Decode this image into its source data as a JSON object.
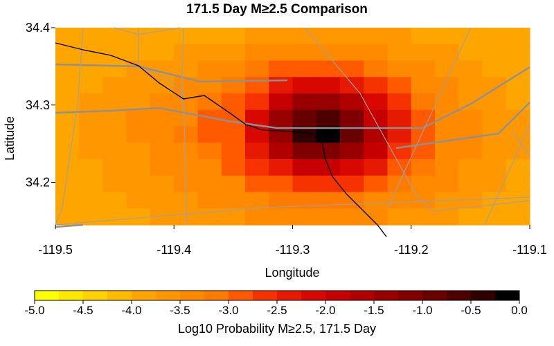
{
  "chart_data": {
    "type": "heatmap",
    "title": "171.5 Day M≥2.5 Comparison",
    "xlabel": "Longitude",
    "ylabel": "Latitude",
    "xlim": [
      -119.5,
      -119.1
    ],
    "ylim": [
      34.145,
      34.4
    ],
    "x_ticks": [
      -119.5,
      -119.4,
      -119.3,
      -119.2,
      -119.1
    ],
    "x_tick_labels": [
      "-119.5",
      "-119.4",
      "-119.3",
      "-119.2",
      "-119.1"
    ],
    "y_ticks": [
      34.2,
      34.3,
      34.4
    ],
    "y_tick_labels": [
      "34.2",
      "34.3",
      "34.4"
    ],
    "grid": {
      "cols": 20,
      "rows": 12,
      "cell_deg": 0.02,
      "description": "Gridded log10 probability values, centered near -119.285, 34.27"
    },
    "values": [
      [
        -3.9,
        -3.9,
        -3.9,
        -3.9,
        -3.9,
        -3.9,
        -3.8,
        -3.8,
        -3.7,
        -3.7,
        -3.6,
        -3.6,
        -3.7,
        -3.7,
        -3.7,
        -3.8,
        -3.8,
        -3.8,
        -3.9,
        -3.9
      ],
      [
        -3.9,
        -3.9,
        -3.8,
        -3.8,
        -3.8,
        -3.7,
        -3.7,
        -3.6,
        -3.5,
        -3.3,
        -3.3,
        -3.3,
        -3.4,
        -3.5,
        -3.6,
        -3.6,
        -3.7,
        -3.8,
        -3.8,
        -3.9
      ],
      [
        -3.9,
        -3.8,
        -3.8,
        -3.7,
        -3.7,
        -3.6,
        -3.5,
        -3.4,
        -3.2,
        -3.0,
        -2.8,
        -2.8,
        -2.9,
        -3.1,
        -3.3,
        -3.5,
        -3.6,
        -3.7,
        -3.8,
        -3.8
      ],
      [
        -3.8,
        -3.8,
        -3.7,
        -3.6,
        -3.6,
        -3.5,
        -3.3,
        -3.2,
        -2.9,
        -2.5,
        -2.2,
        -2.1,
        -2.3,
        -2.6,
        -3.0,
        -3.3,
        -3.5,
        -3.6,
        -3.7,
        -3.8
      ],
      [
        -3.8,
        -3.7,
        -3.7,
        -3.6,
        -3.5,
        -3.3,
        -3.2,
        -3.0,
        -2.6,
        -2.0,
        -1.5,
        -1.4,
        -1.7,
        -2.2,
        -2.7,
        -3.1,
        -3.4,
        -3.6,
        -3.7,
        -3.8
      ],
      [
        -3.8,
        -3.7,
        -3.6,
        -3.5,
        -3.4,
        -3.3,
        -3.0,
        -2.9,
        -2.2,
        -1.5,
        -0.8,
        -0.7,
        -1.2,
        -1.8,
        -2.5,
        -3.0,
        -3.3,
        -3.5,
        -3.6,
        -3.7
      ],
      [
        -3.8,
        -3.7,
        -3.6,
        -3.5,
        -3.4,
        -3.2,
        -3.0,
        -2.8,
        -2.1,
        -1.3,
        -0.3,
        -0.2,
        -1.0,
        -1.7,
        -2.4,
        -2.9,
        -3.3,
        -3.5,
        -3.6,
        -3.7
      ],
      [
        -3.8,
        -3.7,
        -3.6,
        -3.6,
        -3.4,
        -3.3,
        -3.1,
        -2.9,
        -2.3,
        -1.7,
        -1.2,
        -1.1,
        -1.5,
        -2.0,
        -2.6,
        -3.0,
        -3.3,
        -3.5,
        -3.6,
        -3.7
      ],
      [
        -3.8,
        -3.8,
        -3.7,
        -3.6,
        -3.5,
        -3.4,
        -3.3,
        -3.0,
        -2.7,
        -2.3,
        -2.0,
        -1.9,
        -2.2,
        -2.5,
        -2.9,
        -3.2,
        -3.4,
        -3.6,
        -3.7,
        -3.8
      ],
      [
        -3.9,
        -3.8,
        -3.7,
        -3.7,
        -3.6,
        -3.5,
        -3.4,
        -3.3,
        -3.0,
        -2.8,
        -2.6,
        -2.6,
        -2.7,
        -2.9,
        -3.2,
        -3.4,
        -3.5,
        -3.7,
        -3.7,
        -3.8
      ],
      [
        -3.9,
        -3.8,
        -3.8,
        -3.7,
        -3.7,
        -3.6,
        -3.5,
        -3.4,
        -3.3,
        -3.2,
        -3.1,
        -3.1,
        -3.2,
        -3.3,
        -3.4,
        -3.5,
        -3.6,
        -3.7,
        -3.8,
        -3.8
      ],
      [
        -3.9,
        -3.9,
        -3.8,
        -3.8,
        -3.7,
        -3.7,
        -3.6,
        -3.6,
        -3.5,
        -3.5,
        -3.4,
        -3.4,
        -3.5,
        -3.5,
        -3.6,
        -3.6,
        -3.7,
        -3.8,
        -3.8,
        -3.9
      ]
    ],
    "colorbar": {
      "label": "Log10 Probability M≥2.5, 171.5 Day",
      "range": [
        -5.0,
        0.0
      ],
      "ticks": [
        -5.0,
        -4.5,
        -4.0,
        -3.5,
        -3.0,
        -2.5,
        -2.0,
        -1.5,
        -1.0,
        -0.5,
        0.0
      ],
      "tick_labels": [
        "-5.0",
        "-4.5",
        "-4.0",
        "-3.5",
        "-3.0",
        "-2.5",
        "-2.0",
        "-1.5",
        "-1.0",
        "-0.5",
        "0.0"
      ],
      "segments": 20,
      "colors": [
        "#ffff00",
        "#ffe800",
        "#ffd200",
        "#ffbc00",
        "#ffa500",
        "#ff9800",
        "#ff8a00",
        "#ff7b00",
        "#ff5a00",
        "#f53200",
        "#e51a00",
        "#d80800",
        "#c60000",
        "#b00000",
        "#980000",
        "#800000",
        "#680000",
        "#4d0000",
        "#300000",
        "#000000"
      ]
    },
    "overlay_colors": {
      "fault": "#000000",
      "road": "#909090",
      "minor": "#a0a0a0"
    }
  }
}
